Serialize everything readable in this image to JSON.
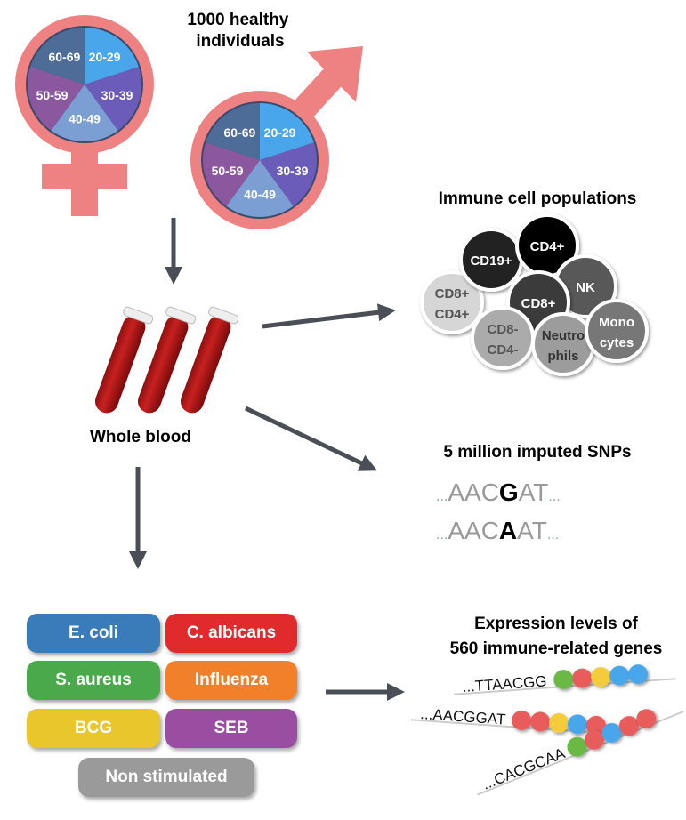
{
  "cohort": {
    "title_line1": "1000 healthy individuals",
    "age_groups": [
      {
        "label": "20-29",
        "color": "#4aa6ea"
      },
      {
        "label": "30-39",
        "color": "#6a5cb8"
      },
      {
        "label": "40-49",
        "color": "#7b9fd3"
      },
      {
        "label": "50-59",
        "color": "#8b579f"
      },
      {
        "label": "60-69",
        "color": "#4e6c98"
      }
    ],
    "symbol_color": "#ee8282",
    "female_icon": "female-symbol-icon",
    "male_icon": "male-symbol-icon"
  },
  "blood": {
    "label": "Whole blood",
    "icon": "test-tubes-icon"
  },
  "immune_cells": {
    "title": "Immune cell populations",
    "cells": [
      {
        "l1": "CD8+",
        "l2": "CD4+",
        "fill": "#d6d6d6",
        "text": "#555"
      },
      {
        "l1": "CD19+",
        "l2": "",
        "fill": "#222",
        "text": "#fff"
      },
      {
        "l1": "CD4+",
        "l2": "",
        "fill": "#000",
        "text": "#fff"
      },
      {
        "l1": "NK",
        "l2": "",
        "fill": "#585858",
        "text": "#fff"
      },
      {
        "l1": "CD8+",
        "l2": "",
        "fill": "#3a3a3a",
        "text": "#fff"
      },
      {
        "l1": "CD8-",
        "l2": "CD4-",
        "fill": "#ababab",
        "text": "#555"
      },
      {
        "l1": "Neutro",
        "l2": "phils",
        "fill": "#9c9c9c",
        "text": "#333"
      },
      {
        "l1": "Mono",
        "l2": "cytes",
        "fill": "#777",
        "text": "#fff"
      }
    ]
  },
  "snps": {
    "title": "5 million imputed SNPs",
    "seq1": {
      "pre": "AAC",
      "snp": "G",
      "post": "AT"
    },
    "seq2": {
      "pre": "AAC",
      "snp": "A",
      "post": "AT"
    },
    "dots": "..."
  },
  "stimulations": [
    {
      "label": "E. coli",
      "color": "#3a7bb9"
    },
    {
      "label": "C. albicans",
      "color": "#e12a2c"
    },
    {
      "label": "S. aureus",
      "color": "#49a94b"
    },
    {
      "label": "Influenza",
      "color": "#f2802b"
    },
    {
      "label": "BCG",
      "color": "#e9c62b"
    },
    {
      "label": "SEB",
      "color": "#9a4ea2"
    },
    {
      "label": "Non stimulated",
      "color": "#9a9a9a"
    }
  ],
  "expression": {
    "title_line1": "Expression levels of",
    "title_line2": "560 immune-related genes",
    "genes": [
      {
        "seq": "...TTAACGG",
        "beads": [
          "#6bb944",
          "#e85c5c",
          "#f4cc3a",
          "#4aa6ea",
          "#4aa6ea"
        ]
      },
      {
        "seq": "...AACGGAT",
        "beads": [
          "#e85c5c",
          "#e85c5c",
          "#f4cc3a",
          "#4aa6ea",
          "#e85c5c"
        ]
      },
      {
        "seq": "...CACGCAA",
        "beads": [
          "#6bb944",
          "#e85c5c",
          "#4aa6ea",
          "#e85c5c",
          "#e85c5c"
        ]
      }
    ]
  }
}
